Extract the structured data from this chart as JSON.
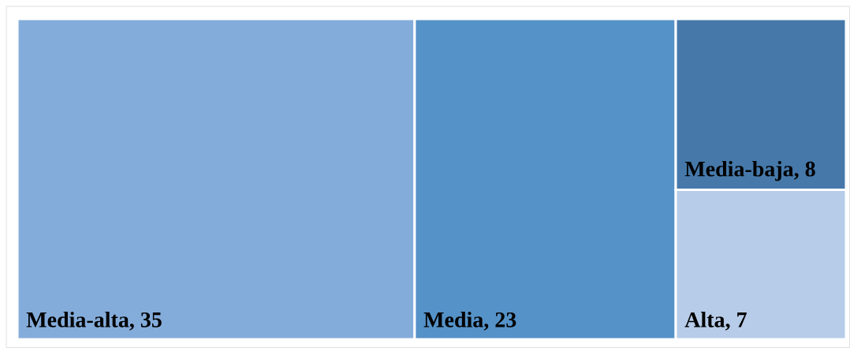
{
  "chart_data": {
    "type": "other",
    "categories": [
      "Media-alta",
      "Media",
      "Media-baja",
      "Alta"
    ],
    "values": [
      35,
      23,
      8,
      7
    ],
    "value_labels": [
      ", 35",
      ", 23",
      ", 8",
      ", 7"
    ],
    "colors": [
      "#84acdb",
      "#5592c8",
      "#4679aa",
      "#b7cce8"
    ]
  }
}
